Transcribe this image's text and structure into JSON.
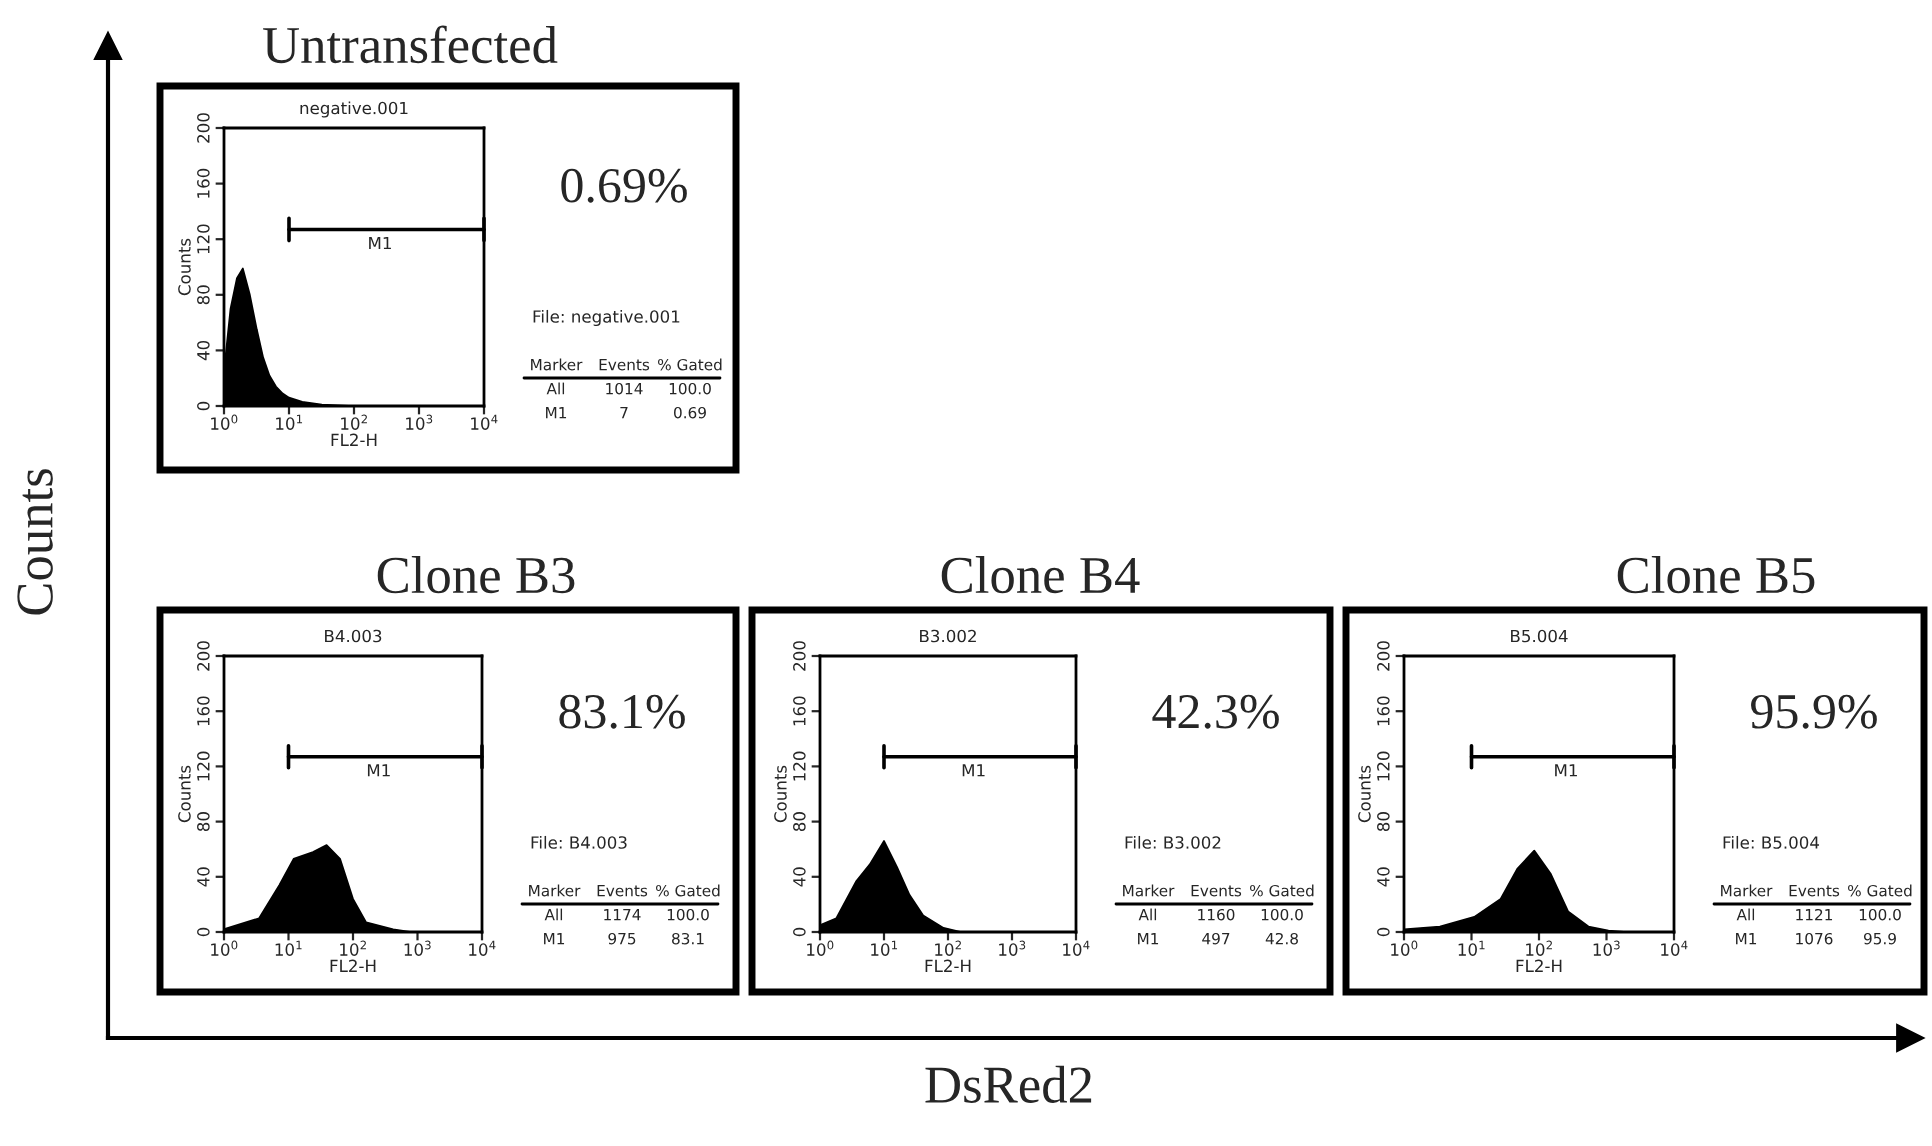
{
  "chart_data": [
    {
      "type": "area",
      "title": "Untransfected",
      "subtitle": "negative.001",
      "xlabel": "FL2-H",
      "ylabel": "Counts",
      "log": "x",
      "xlim": [
        1,
        10000
      ],
      "ylim": [
        0,
        200
      ],
      "xticks": [
        {
          "value": 1,
          "label": "10$^{0}$"
        },
        {
          "value": 10,
          "label": "10$^{1}$"
        },
        {
          "value": 100,
          "label": "10$^{2}$"
        },
        {
          "value": 1000,
          "label": "10$^{3}$"
        },
        {
          "value": 10000,
          "label": "10$^{4}$"
        }
      ],
      "yticks": [
        0,
        40,
        80,
        120,
        160,
        200
      ],
      "series": [
        {
          "color": "#000000",
          "x": [
            1,
            1.26,
            1.58,
            1.95,
            2.5,
            3.2,
            4,
            5,
            6.3,
            8,
            10,
            16,
            32,
            100,
            10000
          ],
          "values": [
            25,
            70,
            92,
            99,
            80,
            55,
            35,
            22,
            14,
            9,
            6,
            3,
            1,
            0,
            0
          ]
        },
        {
          "type": "line",
          "color": "#000000",
          "x": [
            10,
            10000
          ],
          "values": [
            127,
            127
          ]
        }
      ],
      "annotations": [
        "0.69%",
        "File: negative.001",
        "Marker",
        "Events",
        "% Gated",
        "All",
        "1014",
        "100.0",
        "M1",
        "7",
        "0.69",
        "M1"
      ]
    },
    {
      "type": "area",
      "title": "Clone B3",
      "subtitle": "B4.003",
      "xlabel": "FL2-H",
      "ylabel": "Counts",
      "log": "x",
      "xlim": [
        1,
        10000
      ],
      "ylim": [
        0,
        200
      ],
      "xticks": [
        {
          "value": 1,
          "label": "10$^{0}$"
        },
        {
          "value": 10,
          "label": "10$^{1}$"
        },
        {
          "value": 100,
          "label": "10$^{2}$"
        },
        {
          "value": 1000,
          "label": "10$^{3}$"
        },
        {
          "value": 10000,
          "label": "10$^{4}$"
        }
      ],
      "yticks": [
        0,
        40,
        80,
        120,
        160,
        200
      ],
      "series": [
        {
          "color": "#000000",
          "x": [
            1,
            3.5,
            7.2,
            12,
            24,
            39,
            63,
            100,
            160,
            420,
            800,
            10000
          ],
          "values": [
            2,
            10,
            34,
            53,
            58,
            63,
            53,
            24,
            7,
            2,
            0,
            0
          ]
        },
        {
          "type": "line",
          "color": "#000000",
          "x": [
            10,
            10000
          ],
          "values": [
            127,
            127
          ]
        }
      ],
      "annotations": [
        "83.1%",
        "File: B4.003",
        "Marker",
        "Events",
        "% Gated",
        "All",
        "1174",
        "100.0",
        "M1",
        "975",
        "83.1",
        "M1"
      ]
    },
    {
      "type": "area",
      "title": "Clone B4",
      "subtitle": "B3.002",
      "xlabel": "FL2-H",
      "ylabel": "Counts",
      "log": "x",
      "xlim": [
        1,
        10000
      ],
      "ylim": [
        0,
        200
      ],
      "xticks": [
        {
          "value": 1,
          "label": "10$^{0}$"
        },
        {
          "value": 10,
          "label": "10$^{1}$"
        },
        {
          "value": 100,
          "label": "10$^{2}$"
        },
        {
          "value": 1000,
          "label": "10$^{3}$"
        },
        {
          "value": 10000,
          "label": "10$^{4}$"
        }
      ],
      "yticks": [
        0,
        40,
        80,
        120,
        160,
        200
      ],
      "series": [
        {
          "color": "#000000",
          "x": [
            1,
            1.8,
            3.7,
            6,
            10,
            16,
            25,
            41,
            85,
            160,
            10000
          ],
          "values": [
            5,
            10,
            37,
            49,
            66,
            47,
            27,
            12,
            3,
            0,
            0
          ]
        },
        {
          "type": "line",
          "color": "#000000",
          "x": [
            10,
            10000
          ],
          "values": [
            127,
            127
          ]
        }
      ],
      "annotations": [
        "42.3%",
        "File: B3.002",
        "Marker",
        "Events",
        "% Gated",
        "All",
        "1160",
        "100.0",
        "M1",
        "497",
        "42.8",
        "M1"
      ]
    },
    {
      "type": "area",
      "title": "Clone B5",
      "subtitle": "B5.004",
      "xlabel": "FL2-H",
      "ylabel": "Counts",
      "log": "x",
      "xlim": [
        1,
        10000
      ],
      "ylim": [
        0,
        200
      ],
      "xticks": [
        {
          "value": 1,
          "label": "10$^{0}$"
        },
        {
          "value": 10,
          "label": "10$^{1}$"
        },
        {
          "value": 100,
          "label": "10$^{2}$"
        },
        {
          "value": 1000,
          "label": "10$^{3}$"
        },
        {
          "value": 10000,
          "label": "10$^{4}$"
        }
      ],
      "yticks": [
        0,
        40,
        80,
        120,
        160,
        200
      ],
      "series": [
        {
          "color": "#000000",
          "x": [
            1,
            3.4,
            11,
            27,
            48,
            85,
            150,
            270,
            540,
            1070,
            2000,
            10000
          ],
          "values": [
            2,
            4,
            11,
            24,
            46,
            59,
            42,
            15,
            4,
            1,
            0,
            0
          ]
        },
        {
          "type": "line",
          "color": "#000000",
          "x": [
            10,
            10000
          ],
          "values": [
            127,
            127
          ]
        }
      ],
      "annotations": [
        "95.9%",
        "File: B5.004",
        "Marker",
        "Events",
        "% Gated",
        "All",
        "1121",
        "100.0",
        "M1",
        "1076",
        "95.9",
        "M1"
      ]
    },
    {
      "type": "other",
      "xlabel": "DsRed2",
      "ylabel": "Counts"
    }
  ]
}
